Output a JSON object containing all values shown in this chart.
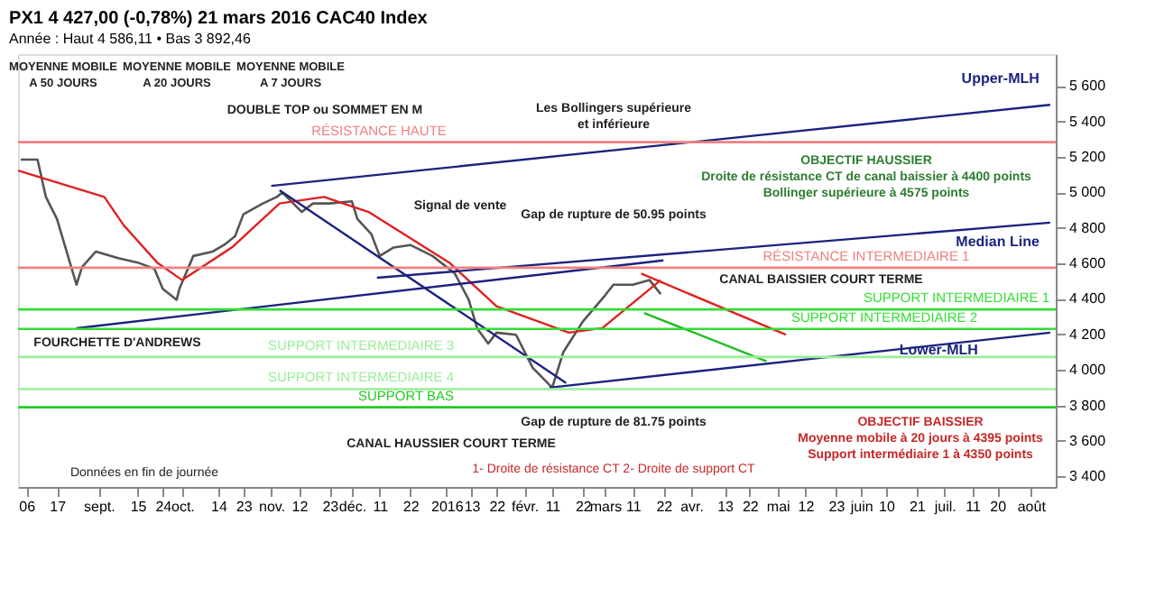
{
  "chart_data": {
    "type": "line",
    "title": "PX1 4 427,00 (-0,78%) 21 mars 2016 CAC40 Index",
    "subtitle": "Année : Haut 4 586,11 • Bas 3 892,46",
    "xlim": [
      "2015-08-03",
      "2016-08-10"
    ],
    "xticks": [
      {
        "value": "2015-08-06",
        "label": "06"
      },
      {
        "value": "2015-08-17",
        "label": "17"
      },
      {
        "value": "2015-09-01",
        "label": "sept."
      },
      {
        "value": "2015-09-15",
        "label": "15"
      },
      {
        "value": "2015-09-24",
        "label": "24"
      },
      {
        "value": "2015-10-01",
        "label": "oct."
      },
      {
        "value": "2015-10-14",
        "label": "14"
      },
      {
        "value": "2015-10-23",
        "label": "23"
      },
      {
        "value": "2015-11-02",
        "label": "nov."
      },
      {
        "value": "2015-11-12",
        "label": "12"
      },
      {
        "value": "2015-11-23",
        "label": "23"
      },
      {
        "value": "2015-12-01",
        "label": "déc."
      },
      {
        "value": "2015-12-11",
        "label": "11"
      },
      {
        "value": "2015-12-22",
        "label": "22"
      },
      {
        "value": "2016-01-04",
        "label": "2016"
      },
      {
        "value": "2016-01-13",
        "label": "13"
      },
      {
        "value": "2016-01-22",
        "label": "22"
      },
      {
        "value": "2016-02-01",
        "label": "févr."
      },
      {
        "value": "2016-02-11",
        "label": "11"
      },
      {
        "value": "2016-02-22",
        "label": "22"
      },
      {
        "value": "2016-03-01",
        "label": "mars"
      },
      {
        "value": "2016-03-11",
        "label": "11"
      },
      {
        "value": "2016-03-22",
        "label": "22"
      },
      {
        "value": "2016-04-01",
        "label": "avr."
      },
      {
        "value": "2016-04-13",
        "label": "13"
      },
      {
        "value": "2016-04-22",
        "label": "22"
      },
      {
        "value": "2016-05-02",
        "label": "mai"
      },
      {
        "value": "2016-05-12",
        "label": "12"
      },
      {
        "value": "2016-05-23",
        "label": "23"
      },
      {
        "value": "2016-06-01",
        "label": "juin"
      },
      {
        "value": "2016-06-10",
        "label": "10"
      },
      {
        "value": "2016-06-21",
        "label": "21"
      },
      {
        "value": "2016-07-01",
        "label": "juil."
      },
      {
        "value": "2016-07-11",
        "label": "11"
      },
      {
        "value": "2016-07-20",
        "label": "20"
      },
      {
        "value": "2016-08-01",
        "label": "août"
      }
    ],
    "ylim": [
      3340,
      5780
    ],
    "yticks": [
      {
        "value": 3400,
        "label": "3 400"
      },
      {
        "value": 3600,
        "label": "3 600"
      },
      {
        "value": 3800,
        "label": "3 800"
      },
      {
        "value": 4000,
        "label": "4 000"
      },
      {
        "value": 4200,
        "label": "4 200"
      },
      {
        "value": 4400,
        "label": "4 400"
      },
      {
        "value": 4600,
        "label": "4 600"
      },
      {
        "value": 4800,
        "label": "4 800"
      },
      {
        "value": 5000,
        "label": "5 000"
      },
      {
        "value": 5200,
        "label": "5 200"
      },
      {
        "value": 5400,
        "label": "5 400"
      },
      {
        "value": 5600,
        "label": "5 600"
      }
    ],
    "grid": false,
    "series": [
      {
        "color": "#555555",
        "x": [
          "2015-08-04",
          "2015-08-10",
          "2015-08-13",
          "2015-08-17",
          "2015-08-24",
          "2015-08-26",
          "2015-08-31",
          "2015-09-08",
          "2015-09-15",
          "2015-09-21",
          "2015-09-24",
          "2015-09-29",
          "2015-09-30",
          "2015-10-05",
          "2015-10-12",
          "2015-10-16",
          "2015-10-20",
          "2015-10-23",
          "2015-10-30",
          "2015-11-04",
          "2015-11-06",
          "2015-11-13",
          "2015-11-17",
          "2015-11-23",
          "2015-12-01",
          "2015-12-03",
          "2015-12-08",
          "2015-12-11",
          "2015-12-16",
          "2015-12-22",
          "2015-12-30",
          "2016-01-07",
          "2016-01-12",
          "2016-01-15",
          "2016-01-19",
          "2016-01-22",
          "2016-01-29",
          "2016-02-04",
          "2016-02-11",
          "2016-02-15",
          "2016-02-22",
          "2016-03-01",
          "2016-03-04",
          "2016-03-11",
          "2016-03-17",
          "2016-03-21"
        ],
        "values": [
          5185,
          5185,
          4975,
          4850,
          4480,
          4580,
          4667,
          4630,
          4605,
          4570,
          4457,
          4395,
          4457,
          4642,
          4667,
          4704,
          4753,
          4877,
          4938,
          4975,
          5000,
          4890,
          4938,
          4938,
          4950,
          4850,
          4765,
          4642,
          4690,
          4704,
          4642,
          4543,
          4395,
          4235,
          4148,
          4210,
          4198,
          4012,
          3900,
          4100,
          4272,
          4420,
          4480,
          4480,
          4506,
          4427
        ]
      },
      {
        "color": "#e02020",
        "x": [
          "2015-08-03",
          "2015-09-03",
          "2015-09-10",
          "2015-09-22",
          "2015-10-01",
          "2015-10-19",
          "2015-11-05",
          "2015-11-21",
          "2015-12-07",
          "2016-01-05",
          "2016-01-22",
          "2016-02-17",
          "2016-02-29",
          "2016-03-21"
        ],
        "values": [
          5124,
          4975,
          4815,
          4605,
          4506,
          4692,
          4938,
          4975,
          4890,
          4605,
          4358,
          4210,
          4235,
          4506
        ]
      },
      {
        "name": "Upper-MLH",
        "color": "#1a237e",
        "x": [
          "2015-11-02",
          "2016-08-08"
        ],
        "values": [
          5037,
          5494
        ]
      },
      {
        "name": "Median Line",
        "color": "#1a237e",
        "x": [
          "2015-12-10",
          "2016-08-08"
        ],
        "values": [
          4519,
          4830
        ]
      },
      {
        "name": "Lower-MLH",
        "color": "#1a237e",
        "x": [
          "2016-02-10",
          "2016-08-08"
        ],
        "values": [
          3900,
          4210
        ]
      },
      {
        "color": "#1a237e",
        "x": [
          "2015-08-24",
          "2016-03-22"
        ],
        "values": [
          4235,
          4617
        ]
      },
      {
        "color": "#1a237e",
        "x": [
          "2015-11-05",
          "2016-02-16"
        ],
        "values": [
          5012,
          3926
        ]
      },
      {
        "color": "#e02020",
        "x": [
          "2016-03-14",
          "2016-05-05"
        ],
        "values": [
          4543,
          4198
        ]
      },
      {
        "color": "#22bb22",
        "x": [
          "2016-03-15",
          "2016-04-28"
        ],
        "values": [
          4321,
          4049
        ]
      }
    ],
    "ref_lines": [
      {
        "axis": "y",
        "value": 5283.71,
        "label": "RÉSISTANCE HAUTE",
        "color": "#f08080"
      },
      {
        "axis": "y",
        "value": 4575.67,
        "label": "RÉSISTANCE INTERMEDIAIRE 1",
        "color": "#f08080"
      },
      {
        "axis": "y",
        "value": 4340.69,
        "label": "SUPPORT INTERMEDIAIRE 1",
        "color": "#33dd33"
      },
      {
        "axis": "y",
        "value": 4230.49,
        "label": "SUPPORT INTERMEDIAIRE 2",
        "color": "#33dd33"
      },
      {
        "axis": "y",
        "value": 4072.78,
        "label": "SUPPORT INTERMEDIAIRE 3",
        "color": "#99ee99"
      },
      {
        "axis": "y",
        "value": 3891.73,
        "label": "SUPPORT INTERMEDIAIRE 4",
        "color": "#99ee99"
      },
      {
        "axis": "y",
        "value": 3789.11,
        "label": "SUPPORT BAS",
        "color": "#22cc22"
      }
    ],
    "annotations": [
      "MOYENNE MOBILE\nA 50 JOURS",
      "MOYENNE MOBILE\nA 20 JOURS",
      "MOYENNE MOBILE\nA 7 JOURS",
      "DOUBLE TOP ou SOMMET EN M",
      "Signal de vente",
      "Les Bollingers supérieure\net inférieure",
      "Gap de rupture de 50.95 points",
      "FOURCHETTE D'ANDREWS",
      "CANAL HAUSSIER COURT TERME",
      "Gap de rupture de 81.75 points",
      "CANAL BAISSIER COURT TERME",
      "OBJECTIF HAUSSIER\nDroite de résistance CT de canal baissier à 4400 points\nBollinger supérieure à 4575 points",
      "OBJECTIF BAISSIER\nMoyenne mobile à 20 jours à 4395 points\nSupport intermédiaire 1 à 4350 points",
      "1- Droite de résistance CT   2- Droite de support CT",
      "Données en fin de journée"
    ]
  }
}
